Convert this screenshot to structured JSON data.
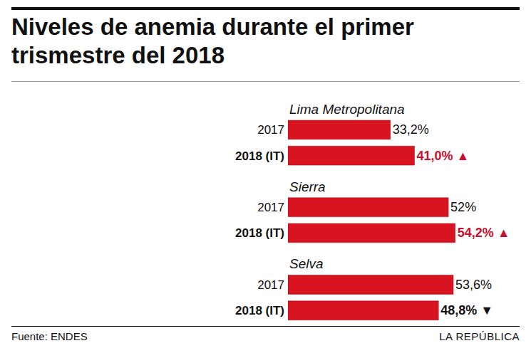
{
  "chart_data": {
    "type": "bar",
    "orientation": "horizontal",
    "title": "Niveles de anemia durante el primer trismestre del 2018",
    "categories": [
      "2017",
      "2018 (IT)"
    ],
    "series": [
      {
        "name": "Lima Metropolitana",
        "values": [
          33.2,
          41.0
        ],
        "value_labels": [
          "33,2%",
          "41,0% ▲"
        ]
      },
      {
        "name": "Sierra",
        "values": [
          52,
          54.2
        ],
        "value_labels": [
          "52%",
          "54,2% ▲"
        ]
      },
      {
        "name": "Selva",
        "values": [
          53.6,
          48.8
        ],
        "value_labels": [
          "53,6%",
          "48,8% ▼"
        ]
      }
    ],
    "color": "#d7141f",
    "xlim": [
      0,
      76
    ],
    "data_labels": true,
    "tick_labels": "y",
    "grid": false,
    "source": "Fuente: ENDES",
    "publisher": "LA REPÚBLICA"
  }
}
